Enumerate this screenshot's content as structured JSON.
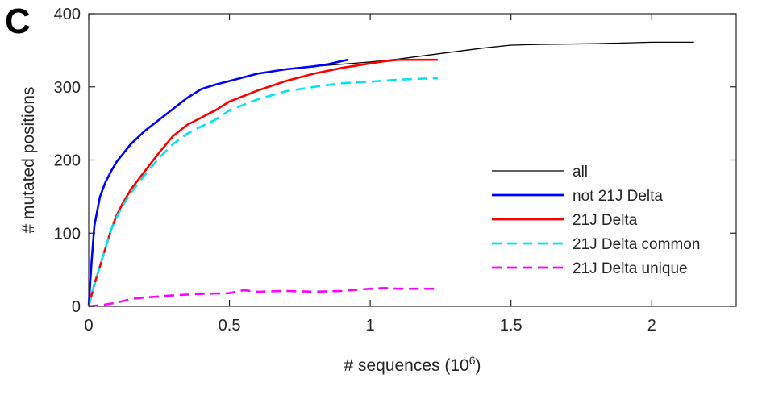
{
  "panel_label": "C",
  "chart_data": {
    "type": "line",
    "xlabel": "# sequences (10",
    "xlabel_sup": "6",
    "xlabel_close": ")",
    "ylabel": "# mutated positions",
    "xlim": [
      0,
      2.3
    ],
    "ylim": [
      0,
      400
    ],
    "xticks": [
      0,
      0.5,
      1,
      1.5,
      2
    ],
    "xtick_labels": [
      "0",
      "0.5",
      "1",
      "1.5",
      "2"
    ],
    "yticks": [
      0,
      100,
      200,
      300,
      400
    ],
    "ytick_labels": [
      "0",
      "100",
      "200",
      "300",
      "400"
    ],
    "grid": false,
    "legend_position": "lower-right",
    "series": [
      {
        "name": "all",
        "color": "#000000",
        "style": "solid",
        "x": [
          0,
          0.01,
          0.02,
          0.04,
          0.06,
          0.08,
          0.1,
          0.15,
          0.2,
          0.25,
          0.3,
          0.35,
          0.4,
          0.45,
          0.5,
          0.6,
          0.7,
          0.8,
          0.9,
          1.0,
          1.1,
          1.2,
          1.3,
          1.4,
          1.5,
          1.6,
          1.8,
          2.0,
          2.15
        ],
        "y": [
          0,
          60,
          110,
          150,
          170,
          185,
          198,
          222,
          240,
          255,
          270,
          285,
          297,
          303,
          308,
          318,
          324,
          328,
          331,
          334,
          338,
          343,
          348,
          353,
          357,
          358,
          359,
          361,
          361
        ]
      },
      {
        "name": "not 21J Delta",
        "color": "#0000ff",
        "style": "solid",
        "x": [
          0,
          0.01,
          0.02,
          0.04,
          0.06,
          0.08,
          0.1,
          0.15,
          0.2,
          0.25,
          0.3,
          0.35,
          0.4,
          0.45,
          0.5,
          0.6,
          0.7,
          0.8,
          0.85,
          0.92
        ],
        "y": [
          0,
          60,
          110,
          150,
          170,
          185,
          198,
          222,
          240,
          255,
          270,
          285,
          297,
          303,
          308,
          318,
          324,
          328,
          331,
          337
        ]
      },
      {
        "name": "21J Delta",
        "color": "#ff0000",
        "style": "solid",
        "x": [
          0,
          0.02,
          0.04,
          0.06,
          0.08,
          0.1,
          0.12,
          0.15,
          0.2,
          0.25,
          0.3,
          0.35,
          0.4,
          0.45,
          0.5,
          0.6,
          0.7,
          0.8,
          0.9,
          1.0,
          1.05,
          1.1,
          1.24
        ],
        "y": [
          0,
          30,
          55,
          80,
          105,
          125,
          140,
          160,
          185,
          210,
          233,
          248,
          258,
          268,
          280,
          295,
          308,
          318,
          326,
          332,
          335,
          337,
          337
        ]
      },
      {
        "name": "21J Delta common",
        "color": "#00e5ee",
        "style": "dashed",
        "x": [
          0,
          0.02,
          0.04,
          0.06,
          0.08,
          0.1,
          0.12,
          0.15,
          0.2,
          0.25,
          0.3,
          0.35,
          0.4,
          0.45,
          0.5,
          0.6,
          0.7,
          0.8,
          0.9,
          1.0,
          1.1,
          1.24
        ],
        "y": [
          0,
          30,
          55,
          80,
          105,
          122,
          137,
          155,
          180,
          203,
          222,
          236,
          246,
          255,
          268,
          283,
          294,
          300,
          305,
          307,
          310,
          312
        ]
      },
      {
        "name": "21J Delta unique",
        "color": "#ff00ff",
        "style": "dashed",
        "x": [
          0,
          0.05,
          0.1,
          0.15,
          0.2,
          0.3,
          0.4,
          0.5,
          0.55,
          0.6,
          0.7,
          0.8,
          0.9,
          1.0,
          1.05,
          1.1,
          1.24
        ],
        "y": [
          0,
          2,
          5,
          10,
          12,
          15,
          17,
          18,
          22,
          20,
          21,
          20,
          21,
          24,
          25,
          24,
          24
        ]
      }
    ]
  }
}
